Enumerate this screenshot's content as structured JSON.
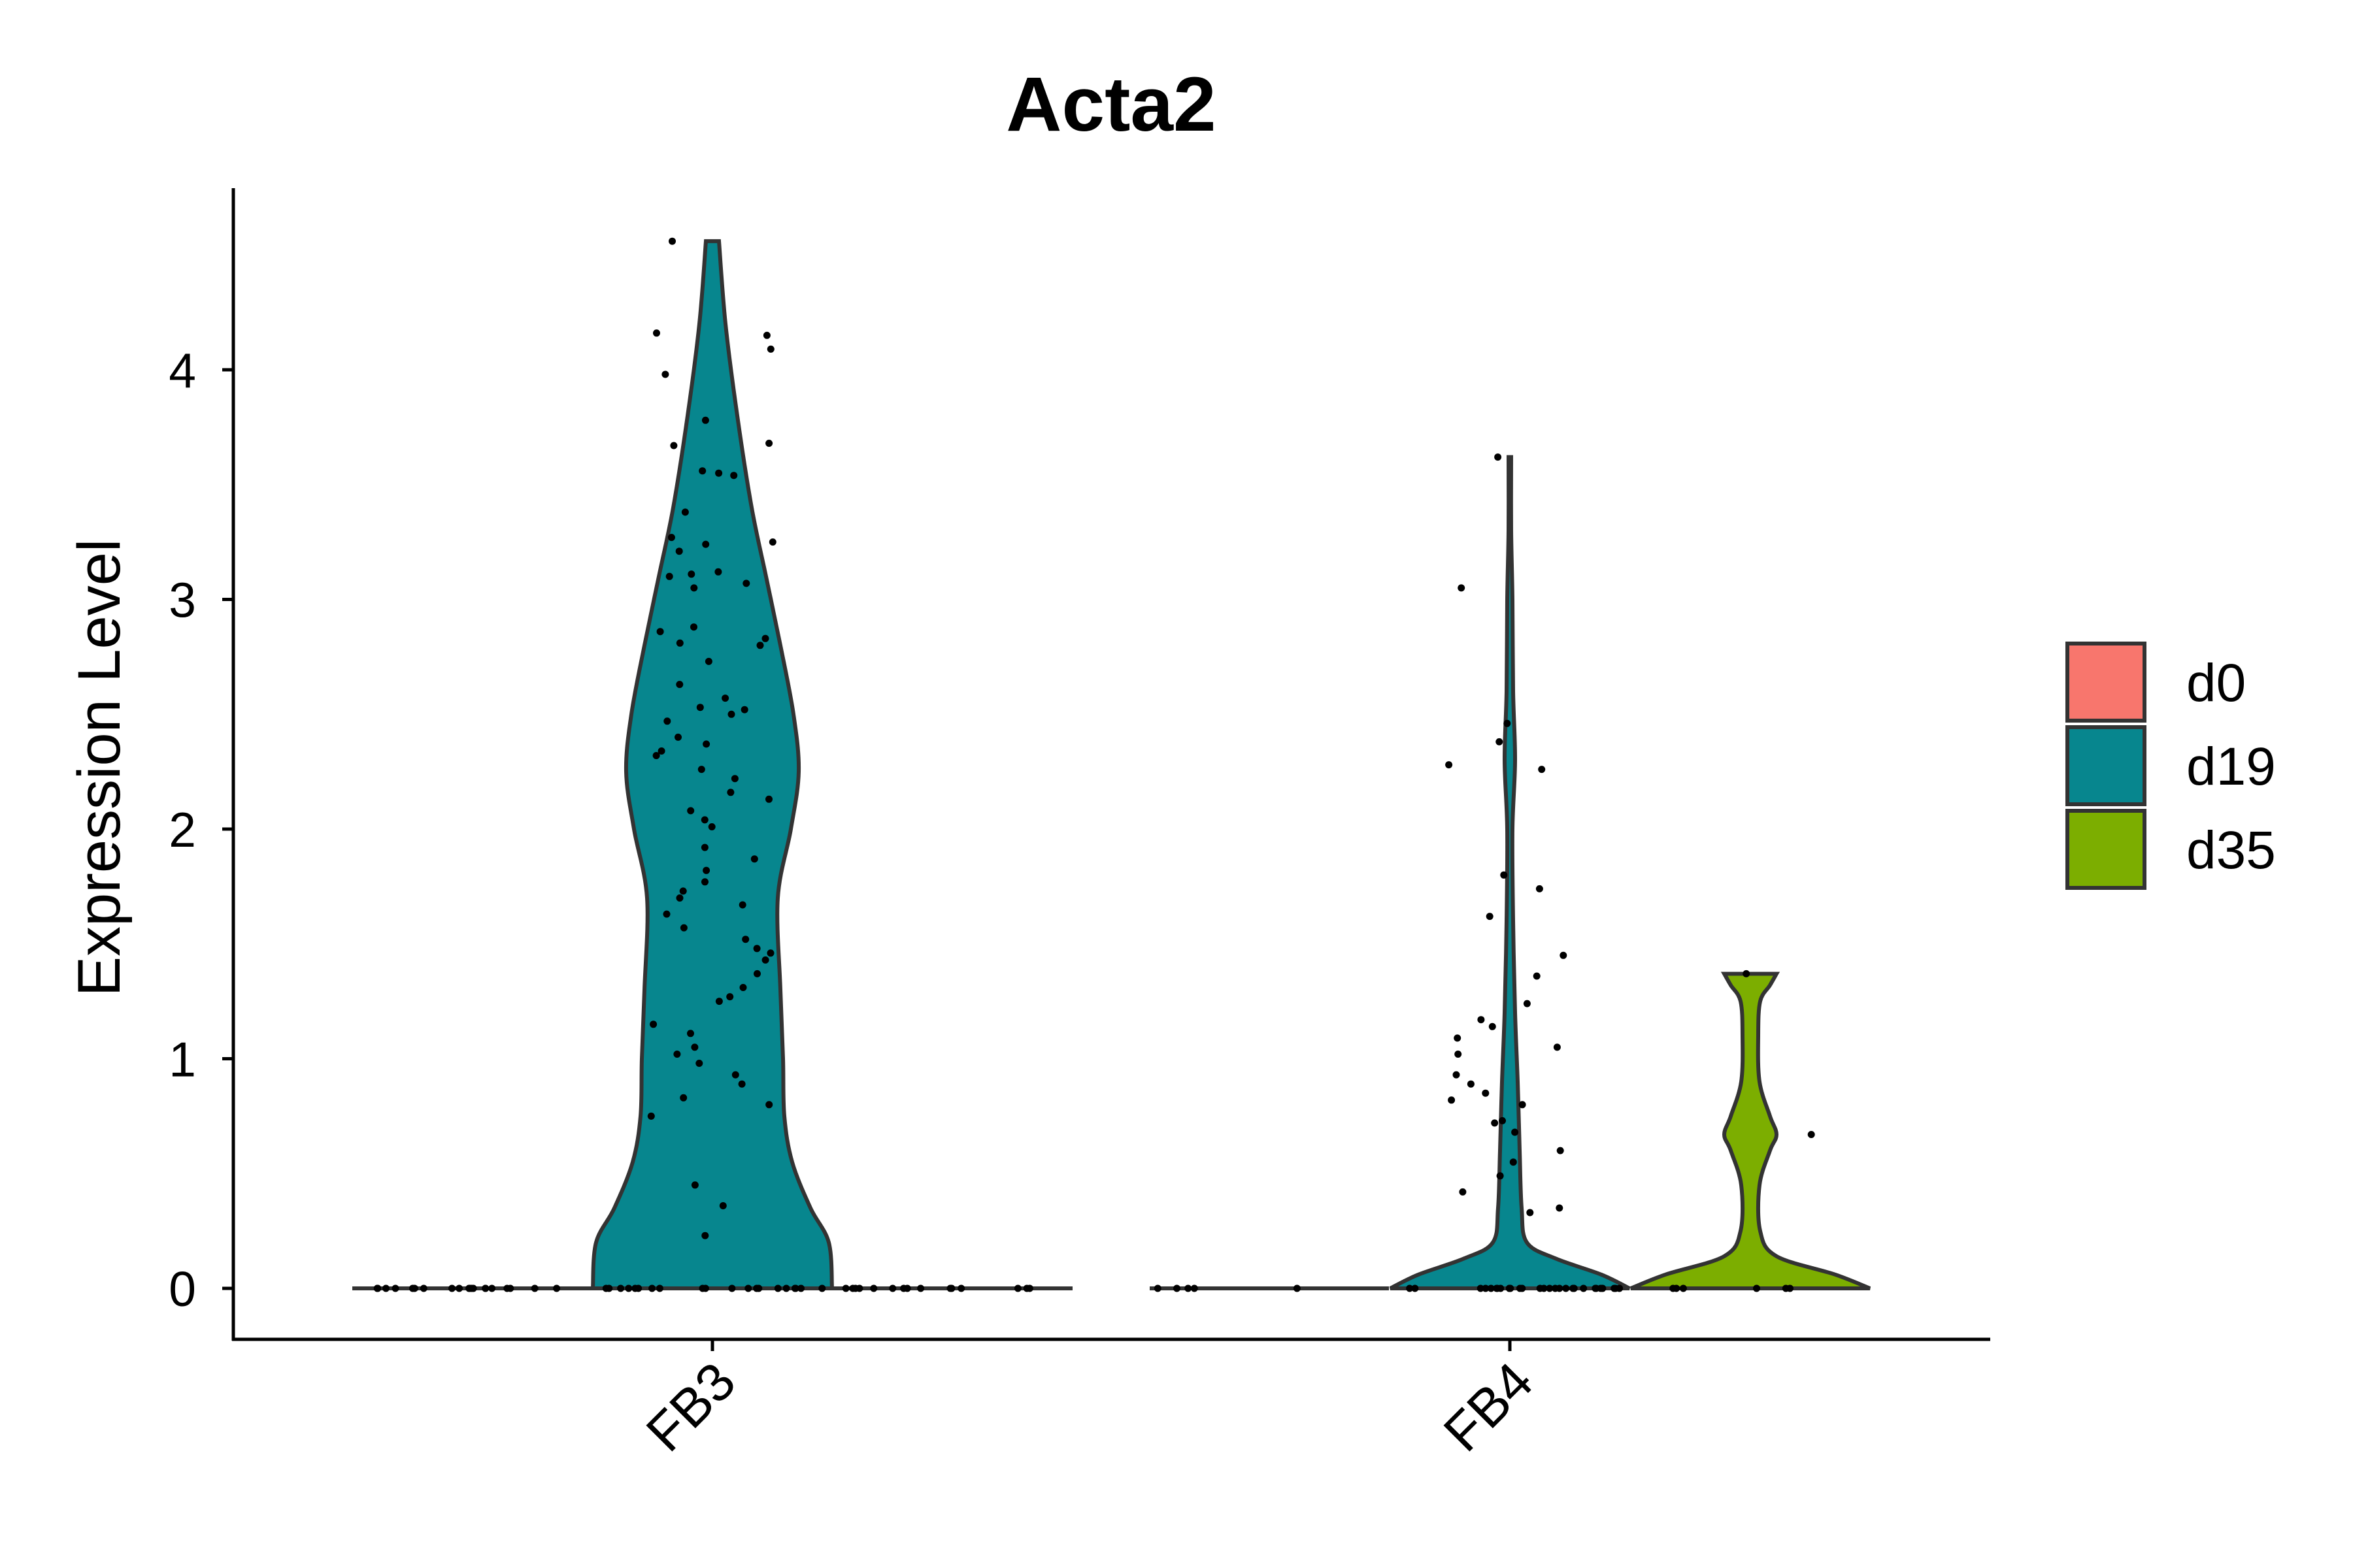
{
  "chart_data": {
    "type": "violin",
    "title": "Acta2",
    "xlabel": "",
    "ylabel": "Expression Level",
    "categories": [
      "FB3",
      "FB4"
    ],
    "yticks": [
      "0",
      "1",
      "2",
      "3",
      "4"
    ],
    "ylim": [
      -0.22,
      4.82
    ],
    "grid": false,
    "legend": {
      "position": "right",
      "entries": [
        {
          "name": "d0",
          "color": "#F8766D"
        },
        {
          "name": "d19",
          "color": "#07868E"
        },
        {
          "name": "d35",
          "color": "#7CAE00"
        }
      ]
    },
    "series": [
      {
        "name": "d0",
        "category": "FB3",
        "violin_max": 0,
        "points": [
          0,
          0,
          0,
          0,
          0,
          0,
          0,
          0,
          0,
          0,
          0,
          0,
          0,
          0,
          0,
          0,
          0,
          0,
          0,
          0
        ]
      },
      {
        "name": "d19",
        "category": "FB3",
        "violin_max": 4.56,
        "points": [
          4.56,
          4.16,
          4.15,
          4.09,
          3.98,
          3.78,
          3.68,
          3.67,
          3.56,
          3.55,
          3.54,
          3.38,
          3.27,
          3.25,
          3.24,
          3.21,
          3.12,
          3.11,
          3.1,
          3.07,
          3.05,
          2.88,
          2.86,
          2.83,
          2.81,
          2.8,
          2.73,
          2.63,
          2.57,
          2.53,
          2.52,
          2.5,
          2.47,
          2.4,
          2.37,
          2.34,
          2.32,
          2.26,
          2.22,
          2.16,
          2.13,
          2.08,
          2.04,
          2.01,
          1.92,
          1.87,
          1.82,
          1.77,
          1.73,
          1.7,
          1.67,
          1.63,
          1.57,
          1.52,
          1.48,
          1.46,
          1.43,
          1.37,
          1.31,
          1.27,
          1.25,
          1.15,
          1.11,
          1.05,
          1.02,
          0.98,
          0.93,
          0.89,
          0.83,
          0.8,
          0.75,
          0.45,
          0.36,
          0.23,
          0,
          0,
          0,
          0,
          0,
          0,
          0,
          0,
          0,
          0,
          0,
          0,
          0,
          0,
          0,
          0,
          0,
          0,
          0,
          0
        ]
      },
      {
        "name": "d35",
        "category": "FB3",
        "violin_max": 0,
        "points": [
          0,
          0,
          0,
          0,
          0,
          0,
          0,
          0,
          0,
          0,
          0,
          0,
          0,
          0,
          0
        ]
      },
      {
        "name": "d0",
        "category": "FB4",
        "violin_max": 0,
        "points": [
          0,
          0,
          0,
          0,
          0
        ]
      },
      {
        "name": "d19",
        "category": "FB4",
        "violin_max": 3.62,
        "points": [
          3.62,
          3.05,
          2.46,
          2.38,
          2.28,
          2.26,
          1.8,
          1.74,
          1.62,
          1.45,
          1.36,
          1.24,
          1.17,
          1.14,
          1.09,
          1.05,
          1.02,
          0.93,
          0.89,
          0.85,
          0.82,
          0.8,
          0.73,
          0.72,
          0.68,
          0.6,
          0.55,
          0.49,
          0.42,
          0.35,
          0.33,
          0,
          0,
          0,
          0,
          0,
          0,
          0,
          0,
          0,
          0,
          0,
          0,
          0,
          0,
          0,
          0,
          0,
          0,
          0,
          0,
          0,
          0,
          0,
          0,
          0,
          0,
          0,
          0,
          0
        ]
      },
      {
        "name": "d35",
        "category": "FB4",
        "violin_max": 1.37,
        "points": [
          1.37,
          0.67,
          0,
          0,
          0,
          0,
          0,
          0
        ]
      }
    ]
  }
}
